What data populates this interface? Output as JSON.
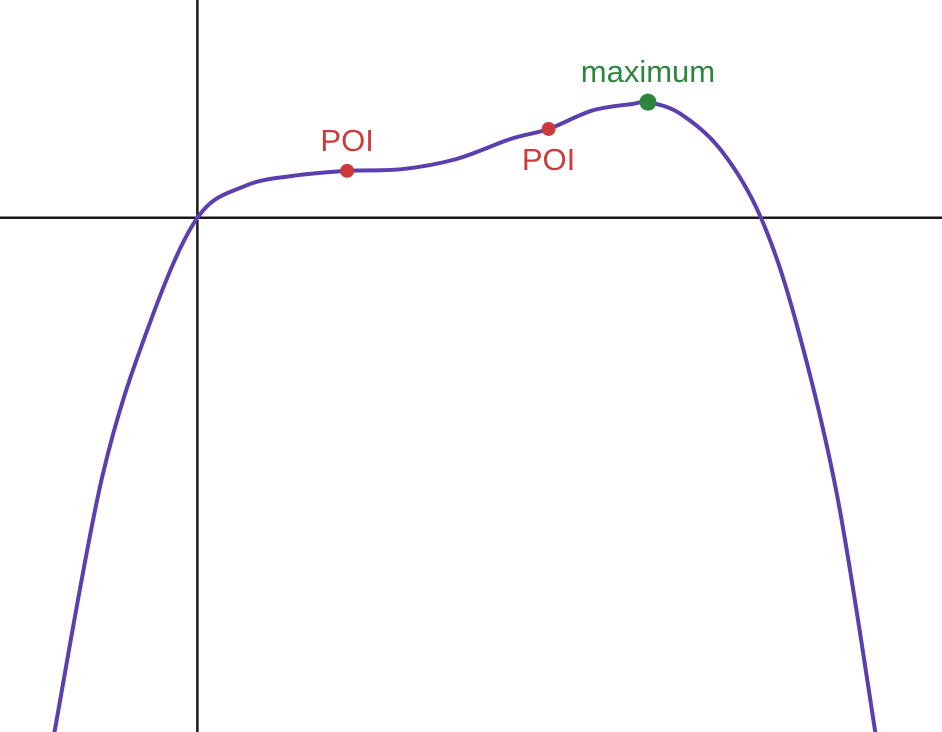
{
  "chart_data": {
    "type": "line",
    "title": "",
    "xlabel": "",
    "ylabel": "",
    "grid": false,
    "xlim": [
      -1.45,
      5.47
    ],
    "ylim": [
      -3.07,
      1.3
    ],
    "curve": {
      "color": "#5b3fae",
      "kind": "polynomial",
      "roots": [
        0,
        4.14
      ],
      "points": [
        {
          "x": -1.05,
          "y": -3.07
        },
        {
          "x": -0.7,
          "y": -1.55
        },
        {
          "x": -0.35,
          "y": -0.63
        },
        {
          "x": 0,
          "y": 0
        },
        {
          "x": 0.35,
          "y": 0.19
        },
        {
          "x": 0.7,
          "y": 0.25
        },
        {
          "x": 1.1,
          "y": 0.28
        },
        {
          "x": 1.5,
          "y": 0.29
        },
        {
          "x": 1.9,
          "y": 0.35
        },
        {
          "x": 2.3,
          "y": 0.47
        },
        {
          "x": 2.58,
          "y": 0.53
        },
        {
          "x": 2.9,
          "y": 0.64
        },
        {
          "x": 3.2,
          "y": 0.68
        },
        {
          "x": 3.31,
          "y": 0.69
        },
        {
          "x": 3.55,
          "y": 0.62
        },
        {
          "x": 3.85,
          "y": 0.4
        },
        {
          "x": 4.14,
          "y": 0
        },
        {
          "x": 4.4,
          "y": -0.63
        },
        {
          "x": 4.7,
          "y": -1.66
        },
        {
          "x": 4.98,
          "y": -3.07
        }
      ]
    },
    "marked_points": [
      {
        "label": "POI",
        "x": 1.1,
        "y": 0.28,
        "color": "#cc3b3b",
        "label_position": "above"
      },
      {
        "label": "POI",
        "x": 2.58,
        "y": 0.53,
        "color": "#cc3b3b",
        "label_position": "below"
      },
      {
        "label": "maximum",
        "x": 3.31,
        "y": 0.69,
        "color": "#2e8540",
        "label_position": "above"
      }
    ]
  }
}
